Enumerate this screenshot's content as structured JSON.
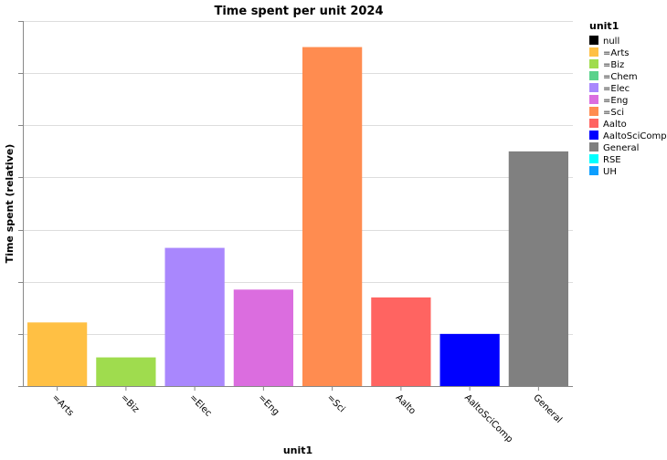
{
  "chart_data": {
    "type": "bar",
    "title": "Time spent per unit 2024",
    "xlabel": "unit1",
    "ylabel": "Time spent (relative)",
    "categories": [
      "=Arts",
      "=Biz",
      "=Elec",
      "=Eng",
      "=Sci",
      "Aalto",
      "AaltoSciComp",
      "General"
    ],
    "values": [
      1.22,
      0.55,
      2.65,
      1.85,
      6.5,
      1.7,
      1.0,
      4.5
    ],
    "ylim": [
      0,
      7
    ],
    "y_tick_labels_shown": false,
    "grid": true,
    "legend": {
      "title": "unit1",
      "placement": "right",
      "entries": [
        {
          "label": "null",
          "color": "#000000"
        },
        {
          "label": "=Arts",
          "color": "#ffc044"
        },
        {
          "label": "=Biz",
          "color": "#9fdc4e"
        },
        {
          "label": "=Chem",
          "color": "#5bd28c"
        },
        {
          "label": "=Elec",
          "color": "#a987fd"
        },
        {
          "label": "=Eng",
          "color": "#db6ddf"
        },
        {
          "label": "=Sci",
          "color": "#ff8c50"
        },
        {
          "label": "Aalto",
          "color": "#ff6461"
        },
        {
          "label": "AaltoSciComp",
          "color": "#0000ff"
        },
        {
          "label": "General",
          "color": "#808080"
        },
        {
          "label": "RSE",
          "color": "#00ffff"
        },
        {
          "label": "UH",
          "color": "#0d9fff"
        }
      ]
    }
  }
}
